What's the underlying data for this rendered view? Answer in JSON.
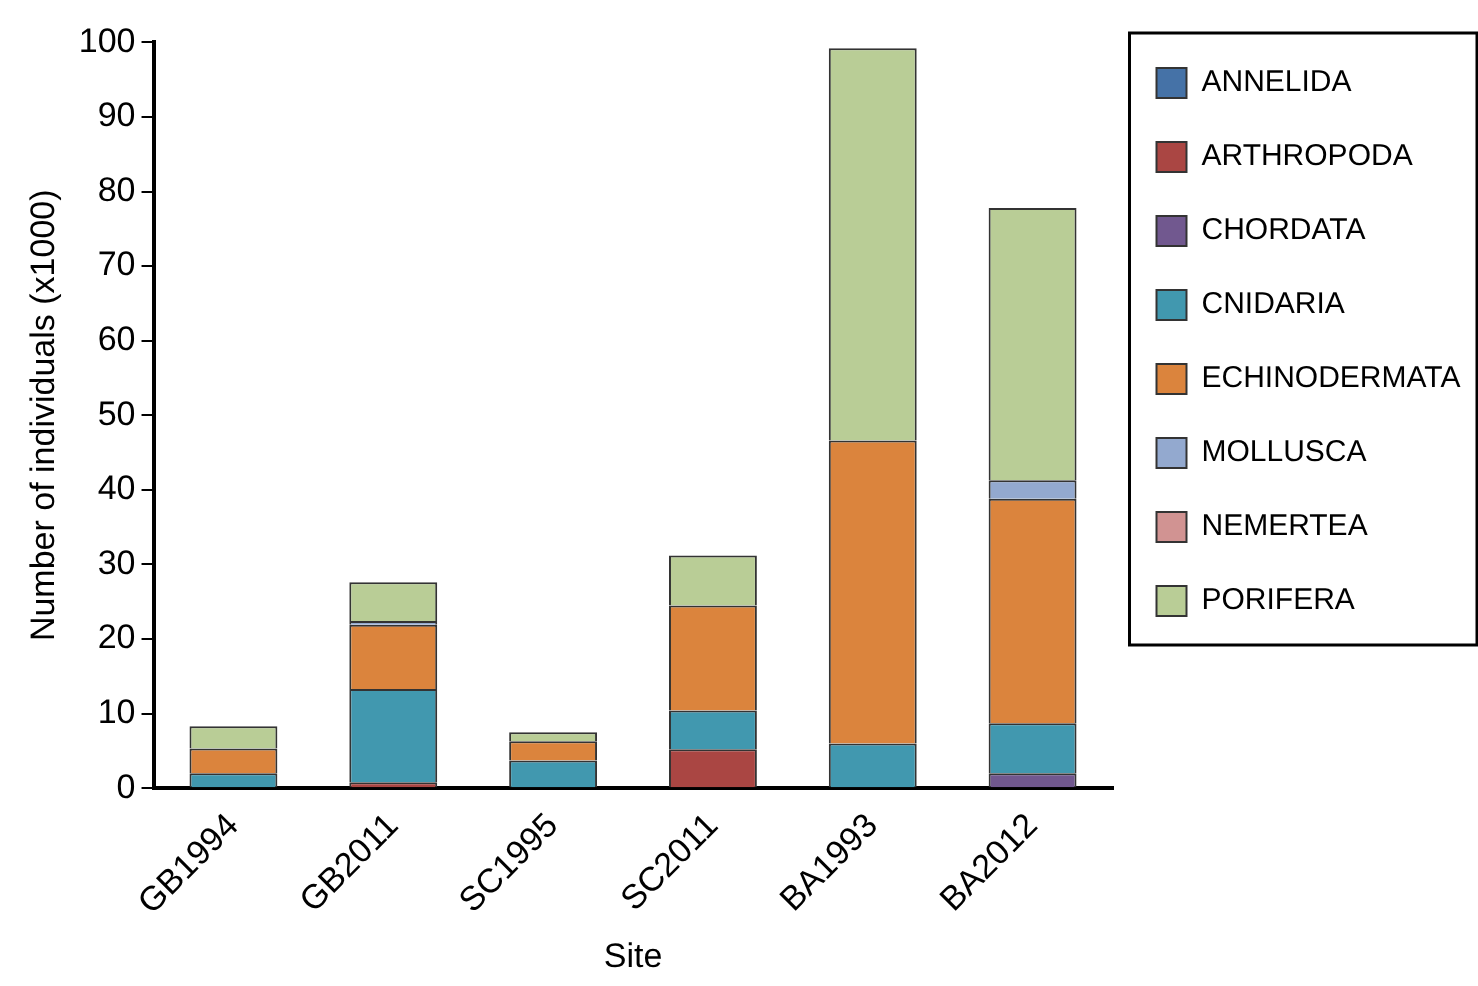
{
  "chart_data": {
    "type": "bar",
    "stacked": true,
    "xlabel": "Site",
    "ylabel": "Number of individuals (x1000)",
    "categories": [
      "GB1994",
      "GB2011",
      "SC1995",
      "SC2011",
      "BA1993",
      "BA2012"
    ],
    "series": [
      {
        "name": "ANNELIDA",
        "color": "#4572a7",
        "values": [
          0,
          0,
          0,
          0,
          0,
          0
        ]
      },
      {
        "name": "ARTHROPODA",
        "color": "#aa4643",
        "values": [
          0,
          0.8,
          0,
          5.2,
          0,
          0
        ]
      },
      {
        "name": "CHORDATA",
        "color": "#71588f",
        "values": [
          0,
          0,
          0,
          0,
          0,
          2.0
        ]
      },
      {
        "name": "CNIDARIA",
        "color": "#4198af",
        "values": [
          2.0,
          12.5,
          3.7,
          5.2,
          6.0,
          6.7
        ]
      },
      {
        "name": "ECHINODERMATA",
        "color": "#db843d",
        "values": [
          3.3,
          8.6,
          2.6,
          14.1,
          40.6,
          30.1
        ]
      },
      {
        "name": "MOLLUSCA",
        "color": "#93a9cf",
        "values": [
          0,
          0.5,
          0,
          0,
          0,
          2.5
        ]
      },
      {
        "name": "NEMERTEA",
        "color": "#d19392",
        "values": [
          0,
          0,
          0,
          0,
          0,
          0
        ]
      },
      {
        "name": "PORIFERA",
        "color": "#b9cd96",
        "values": [
          3.0,
          5.2,
          1.2,
          6.7,
          52.6,
          36.5
        ]
      }
    ],
    "ylim": [
      0,
      100
    ],
    "yticks": [
      0,
      10,
      20,
      30,
      40,
      50,
      60,
      70,
      80,
      90,
      100
    ],
    "grid": false,
    "legend": "right"
  }
}
